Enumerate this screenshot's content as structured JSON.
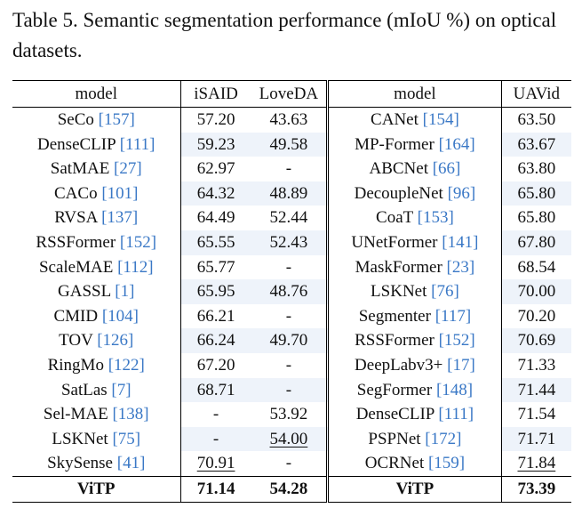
{
  "caption": "Table 5. Semantic segmentation performance (mIoU %) on optical datasets.",
  "headers": {
    "model_left": "model",
    "isaid": "iSAID",
    "loveda": "LoveDA",
    "model_right": "model",
    "uavid": "UAVid"
  },
  "rows": [
    {
      "lname": "SeCo ",
      "lref": "[157]",
      "isaid": "57.20",
      "loveda": "43.63",
      "rname": "CANet ",
      "rref": "[154]",
      "uavid": "63.50"
    },
    {
      "lname": "DenseCLIP ",
      "lref": "[111]",
      "isaid": "59.23",
      "loveda": "49.58",
      "rname": "MP-Former ",
      "rref": "[164]",
      "uavid": "63.67"
    },
    {
      "lname": "SatMAE ",
      "lref": "[27]",
      "isaid": "62.97",
      "loveda": "-",
      "rname": "ABCNet ",
      "rref": "[66]",
      "uavid": "63.80"
    },
    {
      "lname": "CACo ",
      "lref": "[101]",
      "isaid": "64.32",
      "loveda": "48.89",
      "rname": "DecoupleNet ",
      "rref": "[96]",
      "uavid": "65.80"
    },
    {
      "lname": "RVSA ",
      "lref": "[137]",
      "isaid": "64.49",
      "loveda": "52.44",
      "rname": "CoaT ",
      "rref": "[153]",
      "uavid": "65.80"
    },
    {
      "lname": "RSSFormer ",
      "lref": "[152]",
      "isaid": "65.55",
      "loveda": "52.43",
      "rname": "UNetFormer ",
      "rref": "[141]",
      "uavid": "67.80"
    },
    {
      "lname": "ScaleMAE ",
      "lref": "[112]",
      "isaid": "65.77",
      "loveda": "-",
      "rname": "MaskFormer ",
      "rref": "[23]",
      "uavid": "68.54"
    },
    {
      "lname": "GASSL ",
      "lref": "[1]",
      "isaid": "65.95",
      "loveda": "48.76",
      "rname": "LSKNet ",
      "rref": "[76]",
      "uavid": "70.00"
    },
    {
      "lname": "CMID ",
      "lref": "[104]",
      "isaid": "66.21",
      "loveda": "-",
      "rname": "Segmenter ",
      "rref": "[117]",
      "uavid": "70.20"
    },
    {
      "lname": "TOV ",
      "lref": "[126]",
      "isaid": "66.24",
      "loveda": "49.70",
      "rname": "RSSFormer ",
      "rref": "[152]",
      "uavid": "70.69"
    },
    {
      "lname": "RingMo ",
      "lref": "[122]",
      "isaid": "67.20",
      "loveda": "-",
      "rname": "DeepLabv3+ ",
      "rref": "[17]",
      "uavid": "71.33"
    },
    {
      "lname": "SatLas ",
      "lref": "[7]",
      "isaid": "68.71",
      "loveda": "-",
      "rname": "SegFormer ",
      "rref": "[148]",
      "uavid": "71.44"
    },
    {
      "lname": "Sel-MAE ",
      "lref": "[138]",
      "isaid": "-",
      "loveda": "53.92",
      "rname": "DenseCLIP ",
      "rref": "[111]",
      "uavid": "71.54"
    },
    {
      "lname": "LSKNet ",
      "lref": "[75]",
      "isaid": "-",
      "loveda": "54.00",
      "rname": "PSPNet ",
      "rref": "[172]",
      "uavid": "71.71"
    },
    {
      "lname": "SkySense ",
      "lref": "[41]",
      "isaid": "70.91",
      "loveda": "-",
      "rname": "OCRNet ",
      "rref": "[159]",
      "uavid": "71.84"
    }
  ],
  "final": {
    "lname": "ViTP",
    "isaid": "71.14",
    "loveda": "54.28",
    "rname": "ViTP",
    "uavid": "73.39"
  }
}
